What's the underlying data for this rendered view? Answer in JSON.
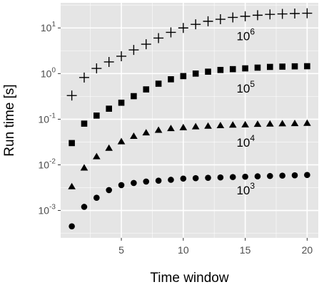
{
  "chart_data": {
    "type": "scatter",
    "title": "",
    "xlabel": "Time window",
    "ylabel": "Run time [s]",
    "x_scale": "linear",
    "y_scale": "log10",
    "xlim": [
      0.1,
      20.9
    ],
    "ylim_log10": [
      -3.6,
      1.55
    ],
    "x_ticks": [
      5,
      10,
      15,
      20
    ],
    "x_tick_labels": [
      "5",
      "10",
      "15",
      "20"
    ],
    "y_ticks_log10": [
      -3,
      -2,
      -1,
      0,
      1
    ],
    "y_tick_labels": [
      {
        "base": "10",
        "exp": "-3"
      },
      {
        "base": "10",
        "exp": "-2"
      },
      {
        "base": "10",
        "exp": "-1"
      },
      {
        "base": "10",
        "exp": "0"
      },
      {
        "base": "10",
        "exp": "1"
      }
    ],
    "grid": true,
    "panel_background": "#e5e5e5",
    "grid_color": "#ffffff",
    "marker_color": "#000000",
    "x": [
      1,
      2,
      3,
      4,
      5,
      6,
      7,
      8,
      9,
      10,
      11,
      12,
      13,
      14,
      15,
      16,
      17,
      18,
      19,
      20
    ],
    "series": [
      {
        "marker": "circle",
        "label": {
          "base": "10",
          "exp": "3",
          "x": 14.3,
          "y_log10": -2.65
        },
        "values": [
          0.00045,
          0.0012,
          0.0019,
          0.0028,
          0.0036,
          0.004,
          0.0043,
          0.0045,
          0.0047,
          0.005,
          0.0051,
          0.0052,
          0.0053,
          0.0054,
          0.0055,
          0.0056,
          0.0057,
          0.0058,
          0.0059,
          0.006
        ]
      },
      {
        "marker": "triangle",
        "label": {
          "base": "10",
          "exp": "4",
          "x": 14.3,
          "y_log10": -1.6
        },
        "values": [
          0.0033,
          0.0085,
          0.015,
          0.023,
          0.032,
          0.042,
          0.05,
          0.057,
          0.062,
          0.065,
          0.068,
          0.07,
          0.072,
          0.074,
          0.075,
          0.077,
          0.078,
          0.079,
          0.08,
          0.081
        ]
      },
      {
        "marker": "square",
        "label": {
          "base": "10",
          "exp": "5",
          "x": 14.3,
          "y_log10": -0.42
        },
        "values": [
          0.03,
          0.08,
          0.12,
          0.17,
          0.23,
          0.32,
          0.45,
          0.6,
          0.75,
          0.88,
          1.0,
          1.1,
          1.2,
          1.25,
          1.3,
          1.35,
          1.4,
          1.42,
          1.44,
          1.45
        ]
      },
      {
        "marker": "plus",
        "label": {
          "base": "10",
          "exp": "6",
          "x": 14.3,
          "y_log10": 0.73
        },
        "values": [
          0.33,
          0.82,
          1.3,
          1.8,
          2.4,
          3.3,
          4.4,
          6.0,
          8.0,
          10.0,
          12.0,
          14.0,
          15.5,
          17.0,
          18.0,
          19.0,
          19.8,
          20.3,
          20.7,
          21.0
        ]
      }
    ]
  }
}
